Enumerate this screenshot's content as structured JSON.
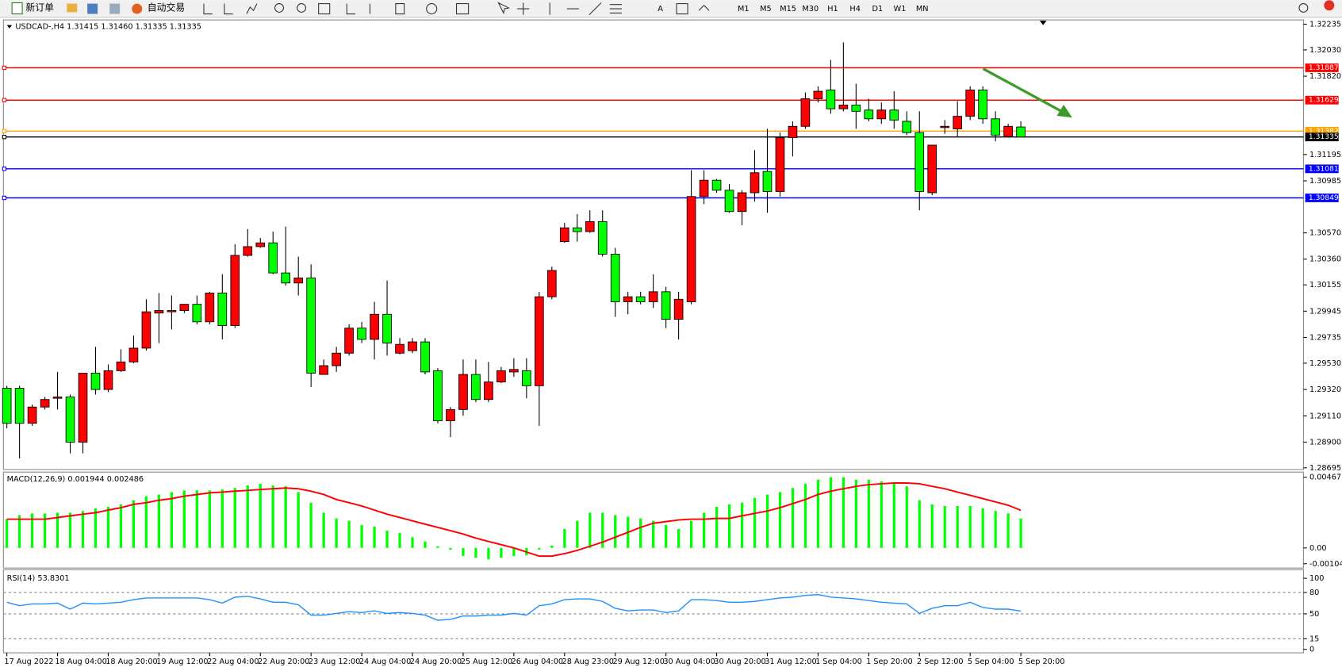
{
  "toolbar": {
    "order_button": "新订单",
    "auto_trade_button": "自动交易",
    "timeframes": [
      "M1",
      "M5",
      "M15",
      "M30",
      "H1",
      "H4",
      "D1",
      "W1",
      "MN"
    ]
  },
  "chart_data": [
    {
      "type": "candlestick",
      "title": "USDCAD-,H4  1.31415 1.31460 1.31335 1.31335",
      "categories": [
        "17 Aug 2022",
        null,
        null,
        null,
        "18 Aug 04:00",
        null,
        null,
        null,
        "18 Aug 20:00",
        null,
        null,
        null,
        "19 Aug 12:00",
        null,
        null,
        null,
        "22 Aug 04:00",
        null,
        null,
        null,
        "22 Aug 20:00",
        null,
        null,
        null,
        "23 Aug 12:00",
        null,
        null,
        null,
        "24 Aug 04:00",
        null,
        null,
        null,
        "24 Aug 20:00",
        null,
        null,
        null,
        "25 Aug 12:00",
        null,
        null,
        null,
        "26 Aug 04:00",
        null,
        null,
        null,
        "28 Aug 23:00",
        null,
        null,
        null,
        "29 Aug 12:00",
        null,
        null,
        null,
        "30 Aug 04:00",
        null,
        null,
        null,
        "30 Aug 20:00",
        null,
        null,
        null,
        "31 Aug 12:00",
        null,
        null,
        null,
        "1 Sep 04:00",
        null,
        null,
        null,
        "1 Sep 20:00",
        null,
        null,
        null,
        "2 Sep 12:00",
        null,
        null,
        null,
        "5 Sep 04:00",
        null,
        null,
        null,
        "5 Sep 20:00"
      ],
      "open": [
        1.2933,
        1.2933,
        1.2905,
        1.2918,
        1.2925,
        1.2926,
        1.289,
        1.2945,
        1.2932,
        1.2947,
        1.2954,
        1.2965,
        1.2993,
        1.2994,
        1.2995,
        1.3,
        1.2986,
        1.3009,
        1.2983,
        1.3039,
        1.3046,
        1.3049,
        1.3025,
        1.3017,
        1.3021,
        1.2944,
        1.2951,
        1.2961,
        1.2981,
        1.2972,
        1.2992,
        1.2961,
        1.2963,
        1.297,
        1.2947,
        1.2907,
        1.2916,
        1.2944,
        1.2924,
        1.2938,
        1.2946,
        1.2947,
        1.2935,
        1.3006,
        1.305,
        1.3061,
        1.3058,
        1.3066,
        1.304,
        1.3002,
        1.3006,
        1.3002,
        1.301,
        1.2988,
        1.3002,
        1.3086,
        1.3099,
        1.3091,
        1.3074,
        1.3089,
        1.3106,
        1.309,
        1.3133,
        1.3142,
        1.3164,
        1.3171,
        1.3156,
        1.3159,
        1.3155,
        1.3148,
        1.3155,
        1.3146,
        1.3137,
        1.3089,
        1.3141,
        1.314,
        1.315,
        1.3171,
        1.3148,
        1.3134,
        1.31415
      ],
      "high": [
        1.2935,
        1.2935,
        1.292,
        1.2926,
        1.2946,
        1.2928,
        1.2945,
        1.2966,
        1.2952,
        1.2964,
        1.2975,
        1.3004,
        1.3009,
        1.3007,
        1.3,
        1.3007,
        1.301,
        1.3024,
        1.3048,
        1.306,
        1.3053,
        1.3058,
        1.3062,
        1.3038,
        1.3032,
        1.2956,
        1.2966,
        1.2984,
        1.2986,
        1.3002,
        1.3019,
        1.2973,
        1.2973,
        1.2973,
        1.2949,
        1.2918,
        1.2956,
        1.2956,
        1.2954,
        1.295,
        1.2957,
        1.2957,
        1.301,
        1.303,
        1.3065,
        1.3072,
        1.3075,
        1.3075,
        1.3045,
        1.301,
        1.301,
        1.3024,
        1.3014,
        1.301,
        1.3107,
        1.3107,
        1.31,
        1.3096,
        1.3091,
        1.3123,
        1.314,
        1.3137,
        1.3146,
        1.3169,
        1.3174,
        1.3195,
        1.3209,
        1.3176,
        1.3164,
        1.3161,
        1.317,
        1.3154,
        1.3154,
        1.3127,
        1.3147,
        1.3162,
        1.3174,
        1.3174,
        1.3154,
        1.3144,
        1.3146
      ],
      "low": [
        1.2901,
        1.2877,
        1.2903,
        1.2916,
        1.2916,
        1.2881,
        1.2881,
        1.2928,
        1.293,
        1.2946,
        1.2953,
        1.2963,
        1.2969,
        1.298,
        1.2993,
        1.2984,
        1.2984,
        1.2972,
        1.2981,
        1.3038,
        1.3045,
        1.3024,
        1.3015,
        1.3007,
        1.2934,
        1.2944,
        1.2946,
        1.2959,
        1.2969,
        1.2956,
        1.2959,
        1.296,
        1.2961,
        1.2944,
        1.2905,
        1.2894,
        1.2911,
        1.2922,
        1.2922,
        1.2937,
        1.2942,
        1.2925,
        1.2903,
        1.3004,
        1.3049,
        1.305,
        1.3057,
        1.3038,
        1.299,
        1.2992,
        1.3,
        1.2997,
        1.2981,
        1.2972,
        1.3,
        1.308,
        1.3089,
        1.3073,
        1.3063,
        1.3082,
        1.3073,
        1.3086,
        1.3118,
        1.314,
        1.3161,
        1.3152,
        1.3154,
        1.314,
        1.3146,
        1.3144,
        1.314,
        1.3135,
        1.3075,
        1.3087,
        1.3136,
        1.3134,
        1.3147,
        1.3144,
        1.313,
        1.3133,
        1.31335
      ],
      "close": [
        1.2905,
        1.2905,
        1.2918,
        1.2924,
        1.2926,
        1.289,
        1.2945,
        1.2932,
        1.2947,
        1.2954,
        1.2965,
        1.2994,
        1.2995,
        1.2995,
        1.3,
        1.2986,
        1.3009,
        1.2983,
        1.3039,
        1.3046,
        1.3049,
        1.3025,
        1.3017,
        1.3021,
        1.2945,
        1.2951,
        1.2961,
        1.2981,
        1.2972,
        1.2992,
        1.2969,
        1.2968,
        1.297,
        1.2946,
        1.2907,
        1.2916,
        1.2944,
        1.2924,
        1.2938,
        1.2947,
        1.2948,
        1.2935,
        1.3006,
        1.3027,
        1.3061,
        1.3058,
        1.3066,
        1.304,
        1.3002,
        1.3006,
        1.3002,
        1.301,
        1.2988,
        1.3004,
        1.3086,
        1.3099,
        1.3091,
        1.3074,
        1.3089,
        1.3105,
        1.309,
        1.3133,
        1.3142,
        1.3164,
        1.317,
        1.3156,
        1.3159,
        1.3154,
        1.3148,
        1.3155,
        1.3147,
        1.3137,
        1.309,
        1.3127,
        1.3142,
        1.315,
        1.3171,
        1.3148,
        1.3135,
        1.3142,
        1.31335
      ],
      "up_color": "#ff0000",
      "down_color": "#00ff00",
      "ylim": [
        1.28695,
        1.32235
      ],
      "yticks": [
        1.32235,
        {
          "value": 1.3203,
          "label": "1.32030"
        },
        {
          "value": 1.3182,
          "label": "1.31820"
        },
        1.31195,
        1.30985,
        {
          "value": 1.3057,
          "label": "1.30570"
        },
        {
          "value": 1.3036,
          "label": "1.30360"
        },
        1.30155,
        1.29945,
        1.29735,
        {
          "value": 1.2953,
          "label": "1.29530"
        },
        {
          "value": 1.2932,
          "label": "1.29320"
        },
        {
          "value": 1.2911,
          "label": "1.29110"
        },
        {
          "value": 1.289,
          "label": "1.28900"
        },
        1.28695
      ],
      "hlines": [
        {
          "value": 1.31887,
          "color": "#ff0000"
        },
        {
          "value": 1.31629,
          "color": "#ff0000"
        },
        {
          "value": 1.31382,
          "color": "#ffa500"
        },
        {
          "value": 1.31335,
          "color": "#000000"
        },
        {
          "value": 1.31081,
          "color": "#0000ff"
        },
        {
          "value": 1.30849,
          "color": "#0000ff"
        }
      ]
    },
    {
      "type": "macd",
      "title": "MACD(12,26,9) 0.001944 0.002486",
      "histogram": {
        "color": "#00ff00",
        "values": [
          0.0019,
          0.00217,
          0.00228,
          0.00228,
          0.00233,
          0.00233,
          0.00244,
          0.00261,
          0.00272,
          0.00288,
          0.00315,
          0.00342,
          0.00353,
          0.00369,
          0.0038,
          0.0038,
          0.0038,
          0.00386,
          0.00396,
          0.00413,
          0.00424,
          0.00413,
          0.00407,
          0.00369,
          0.00299,
          0.00233,
          0.00195,
          0.00179,
          0.00152,
          0.00141,
          0.00114,
          0.00098,
          0.00071,
          0.00043,
          0.00011,
          -0.00011,
          -0.00054,
          -0.00065,
          -0.00076,
          -0.00065,
          -0.00054,
          -0.00049,
          -0.00011,
          0.00016,
          0.00125,
          0.00179,
          0.00233,
          0.00233,
          0.00217,
          0.00206,
          0.00195,
          0.00179,
          0.00152,
          0.00125,
          0.00179,
          0.00233,
          0.00272,
          0.00288,
          0.00299,
          0.00331,
          0.00353,
          0.00369,
          0.00396,
          0.00424,
          0.00451,
          0.00467,
          0.00467,
          0.00451,
          0.00451,
          0.0044,
          0.00424,
          0.00407,
          0.00315,
          0.00288,
          0.00277,
          0.00277,
          0.00277,
          0.00261,
          0.00244,
          0.00228,
          0.001944
        ]
      },
      "signal": {
        "color": "#ff0000",
        "values": [
          0.0019,
          0.0019,
          0.0019,
          0.0019,
          0.00201,
          0.00212,
          0.00223,
          0.00233,
          0.0025,
          0.00266,
          0.00288,
          0.00299,
          0.00315,
          0.00326,
          0.00342,
          0.00353,
          0.00364,
          0.00369,
          0.00375,
          0.0038,
          0.00386,
          0.00391,
          0.00396,
          0.00391,
          0.00375,
          0.00353,
          0.0032,
          0.00299,
          0.00277,
          0.0025,
          0.00223,
          0.00201,
          0.00179,
          0.00157,
          0.00136,
          0.00114,
          0.00092,
          0.00065,
          0.00043,
          0.00022,
          0,
          -0.00027,
          -0.00054,
          -0.00054,
          -0.00038,
          -0.00016,
          0.00011,
          0.00038,
          0.00071,
          0.00103,
          0.00136,
          0.00163,
          0.00174,
          0.00185,
          0.0019,
          0.0019,
          0.00195,
          0.00195,
          0.00212,
          0.00228,
          0.00244,
          0.00266,
          0.00293,
          0.0032,
          0.00353,
          0.00375,
          0.00391,
          0.00407,
          0.00418,
          0.00424,
          0.00429,
          0.00429,
          0.00424,
          0.00407,
          0.00391,
          0.00369,
          0.00348,
          0.00326,
          0.00304,
          0.00282,
          0.002486
        ]
      },
      "ylim": [
        -0.001044,
        0.004671
      ],
      "yticks": [
        0.004671,
        {
          "value": 0,
          "label": "0.00"
        },
        -0.001044
      ]
    },
    {
      "type": "line",
      "title": "RSI(14) 53.8301",
      "color": "#1e90ff",
      "values": [
        66.3,
        61.4,
        63.9,
        63.9,
        65.1,
        56.6,
        65.1,
        63.9,
        65.1,
        66.3,
        69.9,
        72.3,
        72.3,
        72.3,
        72.3,
        72.3,
        69.9,
        65.1,
        73.5,
        74.7,
        71.1,
        66.3,
        66.3,
        62.7,
        48.2,
        48.2,
        50.6,
        53.0,
        51.8,
        54.2,
        50.6,
        51.8,
        50.6,
        48.2,
        41.0,
        42.2,
        47.0,
        47.0,
        48.2,
        48.2,
        50.6,
        48.2,
        61.4,
        63.9,
        69.9,
        71.1,
        71.1,
        67.5,
        57.8,
        54.2,
        55.4,
        55.4,
        51.8,
        54.2,
        69.9,
        69.9,
        68.7,
        66.3,
        66.3,
        67.5,
        69.9,
        72.3,
        73.5,
        75.9,
        77.1,
        73.5,
        72.3,
        71.1,
        68.7,
        66.3,
        65.1,
        63.9,
        50.6,
        57.8,
        61.4,
        61.4,
        66.3,
        59.0,
        56.6,
        56.6,
        53.8301
      ],
      "ylim": [
        0,
        100
      ],
      "yticks": [
        100,
        80,
        50,
        15,
        0
      ]
    }
  ]
}
